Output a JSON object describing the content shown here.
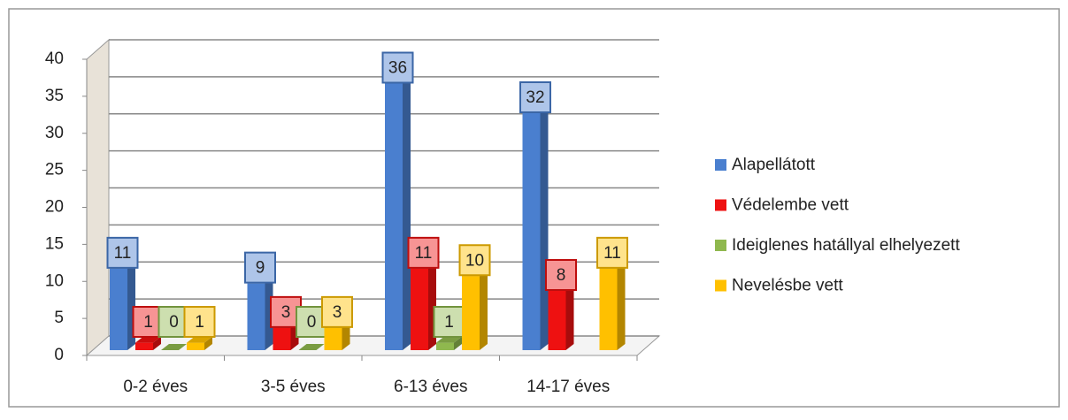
{
  "chart_data": {
    "type": "bar",
    "categories": [
      "0-2 éves",
      "3-5 éves",
      "6-13 éves",
      "14-17 éves"
    ],
    "series": [
      {
        "name": "Alapellátott",
        "color": "#4a7fcf",
        "values": [
          11,
          9,
          36,
          32
        ]
      },
      {
        "name": "Védelembe vett",
        "color": "#ee1111",
        "values": [
          1,
          3,
          11,
          8
        ]
      },
      {
        "name": "Ideiglenes hatállyal elhelyezett",
        "color": "#8fb84e",
        "values": [
          0,
          0,
          1,
          null
        ]
      },
      {
        "name": "Nevelésbe vett",
        "color": "#ffc000",
        "values": [
          1,
          3,
          10,
          11
        ]
      }
    ],
    "ylim": [
      0,
      40
    ],
    "yticks": [
      0,
      5,
      10,
      15,
      20,
      25,
      30,
      35,
      40
    ],
    "grid": true,
    "legend": "right"
  }
}
